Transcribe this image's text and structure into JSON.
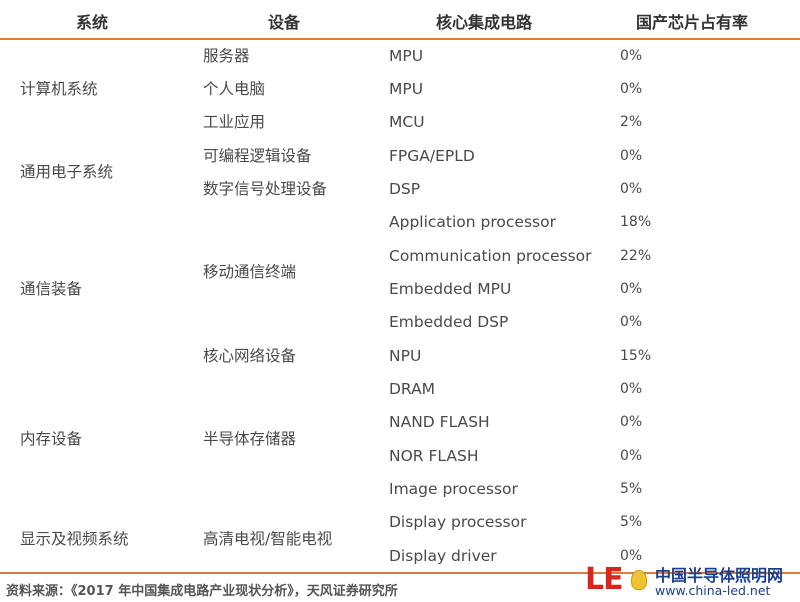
{
  "headers": {
    "system": "系统",
    "device": "设备",
    "ic": "核心集成电路",
    "share": "国产芯片占有率"
  },
  "systems": [
    "计算机系统",
    "通用电子系统",
    "通信装备",
    "内存设备",
    "显示及视频系统"
  ],
  "devices": [
    "服务器",
    "个人电脑",
    "工业应用",
    "可编程逻辑设备",
    "数字信号处理设备",
    "移动通信终端",
    "核心网络设备",
    "半导体存储器",
    "高清电视/智能电视"
  ],
  "rows": [
    {
      "ic": "MPU",
      "share": "0%"
    },
    {
      "ic": "MPU",
      "share": "0%"
    },
    {
      "ic": "MCU",
      "share": "2%"
    },
    {
      "ic": "FPGA/EPLD",
      "share": "0%"
    },
    {
      "ic": "DSP",
      "share": "0%"
    },
    {
      "ic": "Application processor",
      "share": "18%"
    },
    {
      "ic": "Communication processor",
      "share": "22%"
    },
    {
      "ic": "Embedded MPU",
      "share": "0%"
    },
    {
      "ic": "Embedded DSP",
      "share": "0%"
    },
    {
      "ic": "NPU",
      "share": "15%"
    },
    {
      "ic": "DRAM",
      "share": "0%"
    },
    {
      "ic": "NAND FLASH",
      "share": "0%"
    },
    {
      "ic": "NOR FLASH",
      "share": "0%"
    },
    {
      "ic": "Image processor",
      "share": "5%"
    },
    {
      "ic": "Display processor",
      "share": "5%"
    },
    {
      "ic": "Display driver",
      "share": "0%"
    }
  ],
  "source": "资料来源：《2017 年中国集成电路产业现状分析》，天风证券研究所",
  "logo": {
    "mark": "LE",
    "name": "中国半导体照明网",
    "url": "www.china-led.net"
  }
}
